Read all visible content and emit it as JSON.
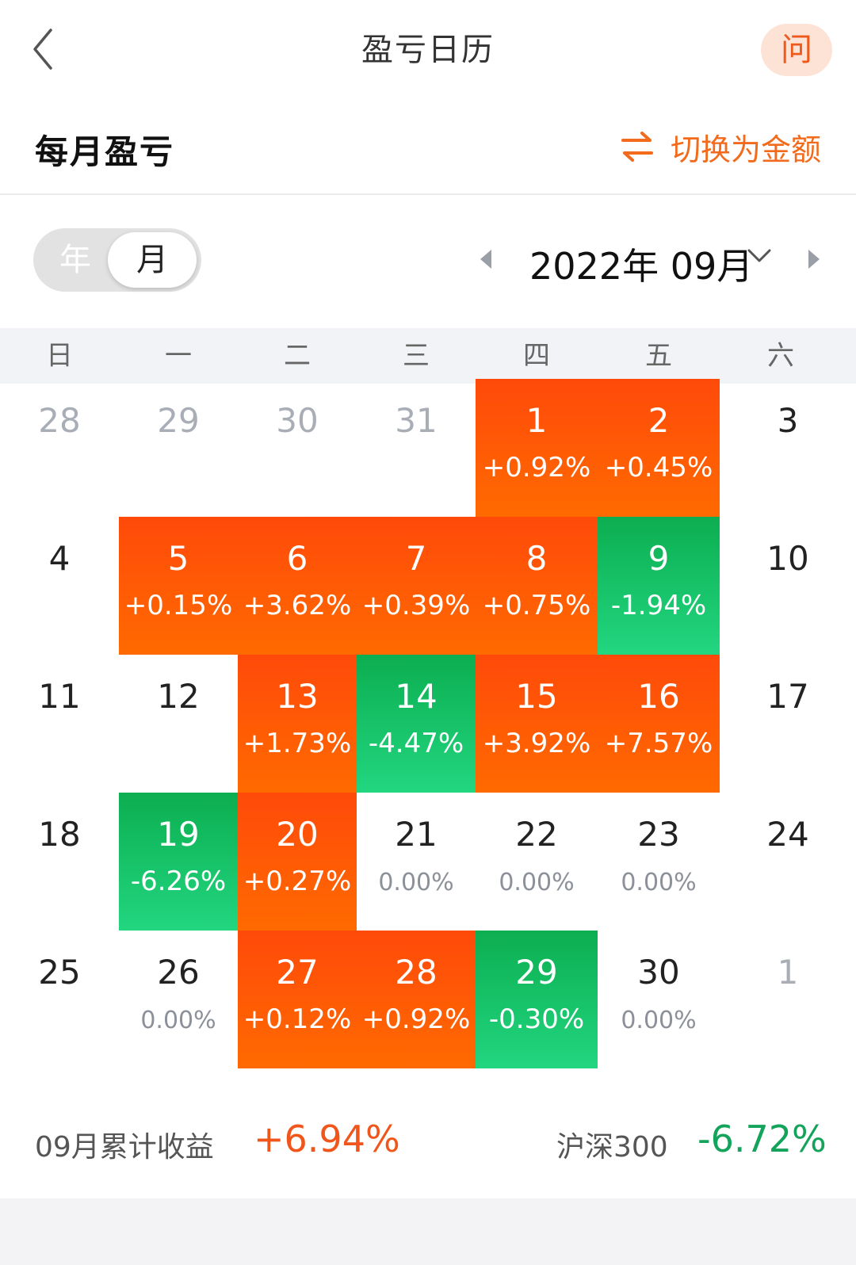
{
  "nav": {
    "title": "盈亏日历",
    "help": "问"
  },
  "section": {
    "title": "每月盈亏",
    "switch_label": "切换为金额"
  },
  "toggle": {
    "year": "年",
    "month": "月"
  },
  "period": {
    "label": "2022年 09月"
  },
  "weekdays": [
    "日",
    "一",
    "二",
    "三",
    "四",
    "五",
    "六"
  ],
  "colors": {
    "up": "#ff5a0a",
    "down": "#18c060",
    "accent": "#f26a1b"
  },
  "weeks": [
    [
      {
        "day": "28",
        "pct": "",
        "state": "muted"
      },
      {
        "day": "29",
        "pct": "",
        "state": "muted"
      },
      {
        "day": "30",
        "pct": "",
        "state": "muted"
      },
      {
        "day": "31",
        "pct": "",
        "state": "muted"
      },
      {
        "day": "1",
        "pct": "+0.92%",
        "state": "up"
      },
      {
        "day": "2",
        "pct": "+0.45%",
        "state": "up"
      },
      {
        "day": "3",
        "pct": "",
        "state": "none"
      }
    ],
    [
      {
        "day": "4",
        "pct": "",
        "state": "none"
      },
      {
        "day": "5",
        "pct": "+0.15%",
        "state": "up"
      },
      {
        "day": "6",
        "pct": "+3.62%",
        "state": "up"
      },
      {
        "day": "7",
        "pct": "+0.39%",
        "state": "up"
      },
      {
        "day": "8",
        "pct": "+0.75%",
        "state": "up"
      },
      {
        "day": "9",
        "pct": "-1.94%",
        "state": "down"
      },
      {
        "day": "10",
        "pct": "",
        "state": "none"
      }
    ],
    [
      {
        "day": "11",
        "pct": "",
        "state": "none"
      },
      {
        "day": "12",
        "pct": "",
        "state": "none"
      },
      {
        "day": "13",
        "pct": "+1.73%",
        "state": "up"
      },
      {
        "day": "14",
        "pct": "-4.47%",
        "state": "down"
      },
      {
        "day": "15",
        "pct": "+3.92%",
        "state": "up"
      },
      {
        "day": "16",
        "pct": "+7.57%",
        "state": "up"
      },
      {
        "day": "17",
        "pct": "",
        "state": "none"
      }
    ],
    [
      {
        "day": "18",
        "pct": "",
        "state": "none"
      },
      {
        "day": "19",
        "pct": "-6.26%",
        "state": "down"
      },
      {
        "day": "20",
        "pct": "+0.27%",
        "state": "up"
      },
      {
        "day": "21",
        "pct": "0.00%",
        "state": "zero"
      },
      {
        "day": "22",
        "pct": "0.00%",
        "state": "zero"
      },
      {
        "day": "23",
        "pct": "0.00%",
        "state": "zero"
      },
      {
        "day": "24",
        "pct": "",
        "state": "none"
      }
    ],
    [
      {
        "day": "25",
        "pct": "",
        "state": "none"
      },
      {
        "day": "26",
        "pct": "0.00%",
        "state": "zero"
      },
      {
        "day": "27",
        "pct": "+0.12%",
        "state": "up"
      },
      {
        "day": "28",
        "pct": "+0.92%",
        "state": "up"
      },
      {
        "day": "29",
        "pct": "-0.30%",
        "state": "down"
      },
      {
        "day": "30",
        "pct": "0.00%",
        "state": "zero"
      },
      {
        "day": "1",
        "pct": "",
        "state": "muted"
      }
    ]
  ],
  "summary": {
    "label": "09月累计收益",
    "value": "+6.94%",
    "index_label": "沪深300",
    "index_value": "-6.72%"
  }
}
